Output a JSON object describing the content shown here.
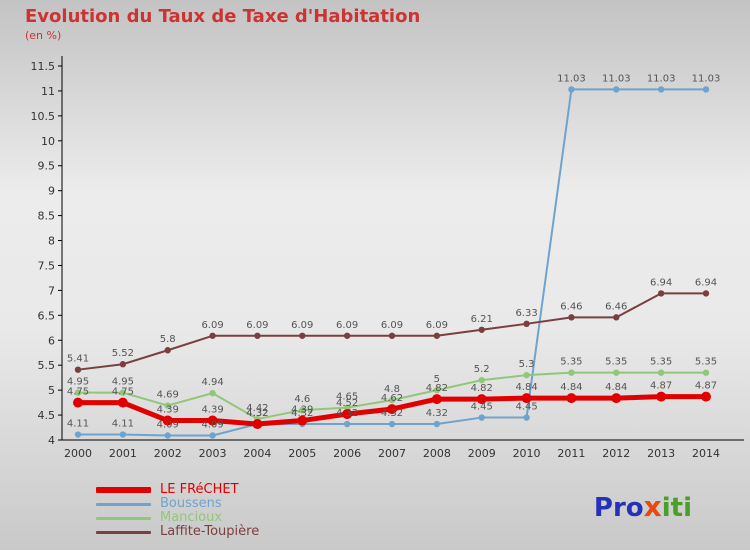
{
  "title": "Evolution du Taux de Taxe d'Habitation",
  "subtitle": "(en %)",
  "logo": {
    "pro": "Pro",
    "x": "x",
    "iti": "iti"
  },
  "chart_data": {
    "type": "line",
    "x": [
      2000,
      2001,
      2002,
      2003,
      2004,
      2005,
      2006,
      2007,
      2008,
      2009,
      2010,
      2011,
      2012,
      2013,
      2014
    ],
    "ylim": [
      4,
      11.5
    ],
    "ytick_step": 0.5,
    "grid": false,
    "legend_position": "bottom-left",
    "title": "Evolution du Taux de Taxe d'Habitation",
    "subtitle": "(en %)",
    "xlabel": "",
    "ylabel": "",
    "series": [
      {
        "name": "LE FRéCHET",
        "key": "le-frechet",
        "color": "#e10000",
        "line_width": 5,
        "values": [
          4.75,
          4.75,
          4.39,
          4.39,
          4.32,
          4.39,
          4.52,
          4.62,
          4.82,
          4.82,
          4.84,
          4.84,
          4.84,
          4.87,
          4.87
        ]
      },
      {
        "name": "Boussens",
        "key": "boussens",
        "color": "#6fa3cf",
        "line_width": 2,
        "values": [
          4.11,
          4.11,
          4.09,
          4.09,
          4.32,
          4.32,
          4.32,
          4.32,
          4.32,
          4.45,
          4.45,
          11.03,
          11.03,
          11.03,
          11.03
        ]
      },
      {
        "name": "Mancioux",
        "key": "mancioux",
        "color": "#90c779",
        "line_width": 2,
        "values": [
          4.95,
          4.95,
          4.69,
          4.94,
          4.42,
          4.6,
          4.65,
          4.8,
          5,
          5.2,
          5.3,
          5.35,
          5.35,
          5.35,
          5.35
        ]
      },
      {
        "name": "Laffite-Toupière",
        "key": "laffite-toupiere",
        "color": "#7a4040",
        "line_width": 2,
        "values": [
          5.41,
          5.52,
          5.8,
          6.09,
          6.09,
          6.09,
          6.09,
          6.09,
          6.09,
          6.21,
          6.33,
          6.46,
          6.46,
          6.94,
          6.94
        ]
      }
    ]
  }
}
